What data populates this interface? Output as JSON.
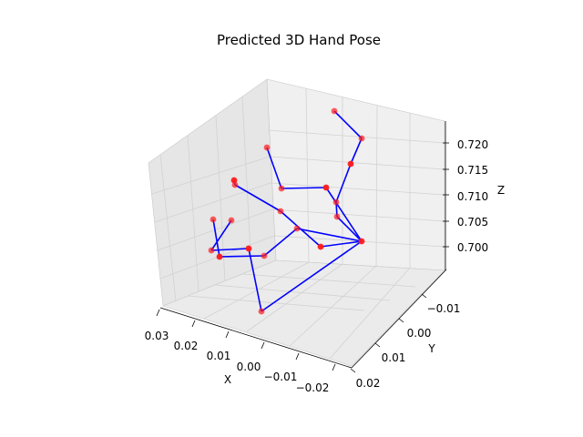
{
  "chart_data": {
    "type": "scatter",
    "subtype": "3d-scatter-with-skeleton",
    "title": "Predicted 3D Hand Pose",
    "xlabel": "X",
    "ylabel": "Y",
    "zlabel": "Z",
    "x_ticks": [
      "0.03",
      "0.02",
      "0.01",
      "0.00",
      "−0.01",
      "−0.02"
    ],
    "y_ticks": [
      "−0.01",
      "0.00",
      "0.01",
      "0.02"
    ],
    "z_ticks": [
      "0.700",
      "0.705",
      "0.710",
      "0.715",
      "0.720"
    ],
    "grid": true,
    "colors": {
      "points": "#ff1a1a",
      "bones": "#0000ff",
      "pane": "#f2f2f2",
      "pane_side": "#e6e6e6",
      "grid": "#d0d0d0"
    },
    "joint_count": 21,
    "projected_joints": [
      [
        397,
        265
      ],
      [
        370,
        238
      ],
      [
        369,
        222
      ],
      [
        385,
        180
      ],
      [
        397,
        152
      ],
      [
        367,
        122
      ],
      [
        358,
        206
      ],
      [
        309,
        207
      ],
      [
        293,
        162
      ],
      [
        352,
        271
      ],
      [
        308,
        232
      ],
      [
        258,
        203
      ],
      [
        257,
        198
      ],
      [
        326,
        251
      ],
      [
        290,
        281
      ],
      [
        241,
        282
      ],
      [
        234,
        241
      ],
      [
        287,
        342
      ],
      [
        273,
        273
      ],
      [
        232,
        275
      ],
      [
        254,
        242
      ]
    ],
    "bones": [
      [
        0,
        1
      ],
      [
        1,
        2
      ],
      [
        2,
        3
      ],
      [
        3,
        4
      ],
      [
        4,
        5
      ],
      [
        0,
        6
      ],
      [
        6,
        7
      ],
      [
        7,
        8
      ],
      [
        0,
        9
      ],
      [
        9,
        10
      ],
      [
        10,
        11
      ],
      [
        11,
        12
      ],
      [
        0,
        13
      ],
      [
        13,
        14
      ],
      [
        14,
        15
      ],
      [
        15,
        16
      ],
      [
        0,
        17
      ],
      [
        17,
        18
      ],
      [
        18,
        19
      ],
      [
        19,
        20
      ]
    ]
  }
}
